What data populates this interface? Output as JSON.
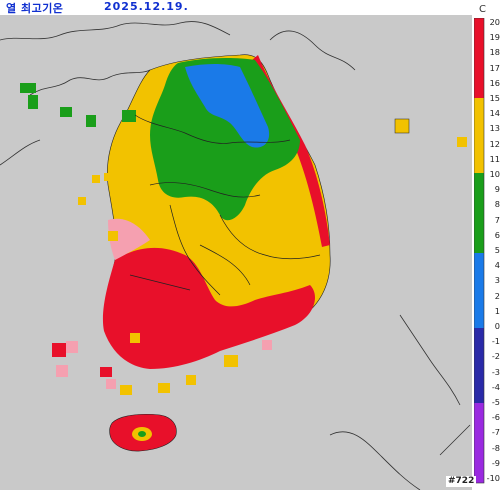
{
  "header": {
    "title": "열 최고기온",
    "date": "2025.12.19."
  },
  "colorbar": {
    "unit": "C",
    "ticks": [
      "20",
      "19",
      "18",
      "17",
      "16",
      "15",
      "14",
      "13",
      "12",
      "11",
      "10",
      "9",
      "8",
      "7",
      "6",
      "5",
      "4",
      "3",
      "2",
      "1",
      "0",
      "-1",
      "-2",
      "-3",
      "-4",
      "-5",
      "-6",
      "-7",
      "-8",
      "-9",
      "-10"
    ],
    "bands": [
      {
        "from": 15,
        "to": 20,
        "color": "#e8102a"
      },
      {
        "from": 10,
        "to": 15,
        "color": "#f2c200"
      },
      {
        "from": 5,
        "to": 10,
        "color": "#1a9e1a"
      },
      {
        "from": 0,
        "to": 5,
        "color": "#1a7ae8"
      },
      {
        "from": -5,
        "to": 0,
        "color": "#2a2aa8"
      },
      {
        "from": -10,
        "to": -5,
        "color": "#9a2ae0"
      }
    ]
  },
  "map": {
    "background": "#c9c9c9",
    "station_label": "#722"
  }
}
